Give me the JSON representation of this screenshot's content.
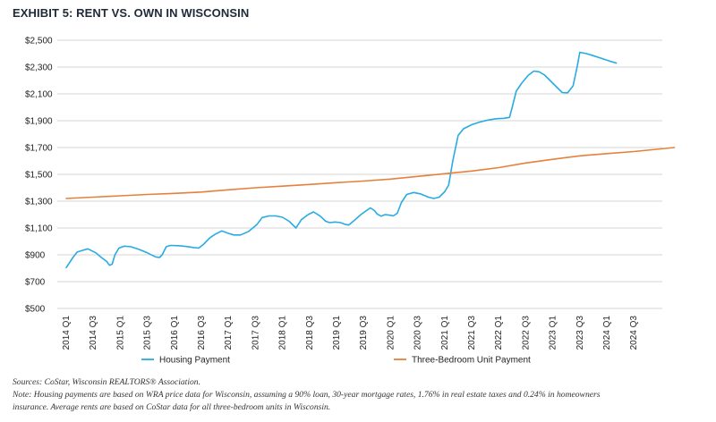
{
  "chart_data": {
    "type": "line",
    "title": "EXHIBIT 5: RENT VS. OWN IN WISCONSIN",
    "xlabel": "",
    "ylabel": "",
    "ylim": [
      500,
      2500
    ],
    "yticks": [
      500,
      700,
      900,
      1100,
      1300,
      1500,
      1700,
      1900,
      2100,
      2300,
      2500
    ],
    "ytick_labels": [
      "$500",
      "$700",
      "$900",
      "$1,100",
      "$1,300",
      "$1,500",
      "$1,700",
      "$1,900",
      "$2,100",
      "$2,300",
      "$2,500"
    ],
    "xticks": [
      "2014 Q1",
      "2014 Q3",
      "2015 Q1",
      "2015 Q3",
      "2016 Q1",
      "2016 Q3",
      "2017 Q1",
      "2017 Q3",
      "2018 Q1",
      "2018 Q3",
      "2019 Q1",
      "2019 Q3",
      "2020 Q1",
      "2020 Q3",
      "2021 Q1",
      "2021 Q3",
      "2022 Q1",
      "2022 Q3",
      "2023 Q1",
      "2023 Q3",
      "2024 Q1",
      "2024 Q3"
    ],
    "grid": true,
    "legend_position": "bottom",
    "series": [
      {
        "name": "Housing Payment",
        "color": "#29abe2",
        "points": [
          [
            0,
            805
          ],
          [
            0.5,
            880
          ],
          [
            0.8,
            920
          ],
          [
            1.1,
            930
          ],
          [
            1.6,
            945
          ],
          [
            2.2,
            915
          ],
          [
            2.6,
            880
          ],
          [
            3.0,
            850
          ],
          [
            3.2,
            822
          ],
          [
            3.4,
            830
          ],
          [
            3.6,
            900
          ],
          [
            3.9,
            950
          ],
          [
            4.3,
            965
          ],
          [
            4.8,
            960
          ],
          [
            5.4,
            940
          ],
          [
            6.0,
            915
          ],
          [
            6.6,
            885
          ],
          [
            6.9,
            880
          ],
          [
            7.1,
            900
          ],
          [
            7.4,
            960
          ],
          [
            7.7,
            970
          ],
          [
            8.3,
            968
          ],
          [
            8.9,
            962
          ],
          [
            9.4,
            955
          ],
          [
            9.8,
            950
          ],
          [
            10.2,
            982
          ],
          [
            10.6,
            1025
          ],
          [
            11.0,
            1052
          ],
          [
            11.5,
            1078
          ],
          [
            12.0,
            1060
          ],
          [
            12.4,
            1048
          ],
          [
            12.9,
            1048
          ],
          [
            13.5,
            1075
          ],
          [
            14.1,
            1125
          ],
          [
            14.5,
            1178
          ],
          [
            15.0,
            1190
          ],
          [
            15.5,
            1190
          ],
          [
            16.0,
            1180
          ],
          [
            16.5,
            1150
          ],
          [
            16.9,
            1110
          ],
          [
            17.0,
            1100
          ],
          [
            17.4,
            1162
          ],
          [
            17.9,
            1200
          ],
          [
            18.3,
            1220
          ],
          [
            18.8,
            1188
          ],
          [
            19.2,
            1150
          ],
          [
            19.5,
            1140
          ],
          [
            19.9,
            1145
          ],
          [
            20.3,
            1140
          ],
          [
            20.6,
            1128
          ],
          [
            20.9,
            1122
          ],
          [
            21.3,
            1155
          ],
          [
            21.8,
            1200
          ],
          [
            22.3,
            1236
          ],
          [
            22.5,
            1250
          ],
          [
            22.8,
            1230
          ],
          [
            23.0,
            1205
          ],
          [
            23.3,
            1188
          ],
          [
            23.6,
            1200
          ],
          [
            24.0,
            1195
          ],
          [
            24.2,
            1190
          ],
          [
            24.5,
            1210
          ],
          [
            24.8,
            1290
          ],
          [
            25.2,
            1350
          ],
          [
            25.7,
            1365
          ],
          [
            26.2,
            1355
          ],
          [
            26.8,
            1330
          ],
          [
            27.2,
            1320
          ],
          [
            27.6,
            1330
          ],
          [
            28.0,
            1370
          ],
          [
            28.3,
            1420
          ],
          [
            28.6,
            1600
          ],
          [
            29.0,
            1790
          ],
          [
            29.4,
            1840
          ],
          [
            30.0,
            1870
          ],
          [
            30.6,
            1890
          ],
          [
            31.2,
            1905
          ],
          [
            31.8,
            1915
          ],
          [
            32.4,
            1918
          ],
          [
            32.8,
            1925
          ],
          [
            33.0,
            2000
          ],
          [
            33.3,
            2120
          ],
          [
            33.7,
            2180
          ],
          [
            34.2,
            2240
          ],
          [
            34.6,
            2270
          ],
          [
            35.0,
            2265
          ],
          [
            35.4,
            2240
          ],
          [
            35.8,
            2200
          ],
          [
            36.3,
            2150
          ],
          [
            36.7,
            2110
          ],
          [
            37.1,
            2108
          ],
          [
            37.5,
            2160
          ],
          [
            37.8,
            2300
          ],
          [
            38.0,
            2410
          ],
          [
            38.5,
            2400
          ],
          [
            39.0,
            2385
          ],
          [
            39.6,
            2365
          ],
          [
            40.2,
            2345
          ],
          [
            40.7,
            2330
          ]
        ]
      },
      {
        "name": "Three-Bedroom Unit Payment",
        "color": "#e6803a",
        "points": [
          [
            0,
            1320
          ],
          [
            2,
            1330
          ],
          [
            4,
            1340
          ],
          [
            6,
            1350
          ],
          [
            8,
            1358
          ],
          [
            10,
            1368
          ],
          [
            12,
            1385
          ],
          [
            14,
            1400
          ],
          [
            16,
            1412
          ],
          [
            18,
            1425
          ],
          [
            20,
            1438
          ],
          [
            22,
            1450
          ],
          [
            24,
            1465
          ],
          [
            26,
            1485
          ],
          [
            28,
            1505
          ],
          [
            30,
            1525
          ],
          [
            32,
            1550
          ],
          [
            34,
            1585
          ],
          [
            36,
            1612
          ],
          [
            38,
            1638
          ],
          [
            40,
            1655
          ],
          [
            42,
            1670
          ],
          [
            44,
            1690
          ],
          [
            45,
            1700
          ]
        ]
      }
    ],
    "legend": [
      "Housing Payment",
      "Three-Bedroom Unit Payment"
    ]
  },
  "footer": {
    "sources": "Sources: CoStar, Wisconsin REALTORS® Association.",
    "note_line1": "Note: Housing payments are based on WRA price data for Wisconsin, assuming a 90% loan, 30-year mortgage rates, 1.76% in real estate taxes and 0.24% in homeowners",
    "note_line2": "insurance.  Average rents are based on CoStar data for all three-bedroom units in Wisconsin."
  }
}
